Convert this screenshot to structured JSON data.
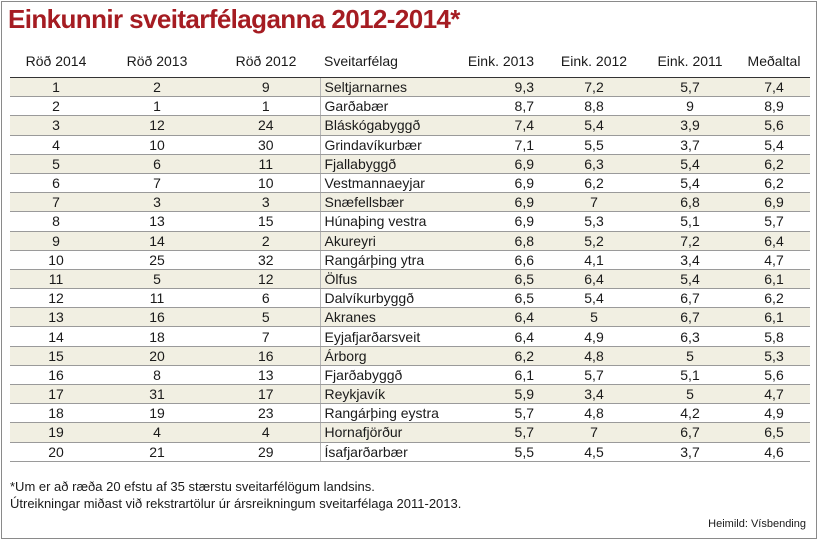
{
  "title": "Einkunnir sveitarfélaganna 2012-2014*",
  "columns": [
    "Röð 2014",
    "Röð 2013",
    "Röð 2012",
    "Sveitarfélag",
    "Eink. 2013",
    "Eink. 2012",
    "Eink. 2011",
    "Meðaltal"
  ],
  "rows": [
    [
      "1",
      "2",
      "9",
      "Seltjarnarnes",
      "9,3",
      "7,2",
      "5,7",
      "7,4"
    ],
    [
      "2",
      "1",
      "1",
      "Garðabær",
      "8,7",
      "8,8",
      "9",
      "8,9"
    ],
    [
      "3",
      "12",
      "24",
      "Bláskógabyggð",
      "7,4",
      "5,4",
      "3,9",
      "5,6"
    ],
    [
      "4",
      "10",
      "30",
      "Grindavíkurbær",
      "7,1",
      "5,5",
      "3,7",
      "5,4"
    ],
    [
      "5",
      "6",
      "11",
      "Fjallabyggð",
      "6,9",
      "6,3",
      "5,4",
      "6,2"
    ],
    [
      "6",
      "7",
      "10",
      "Vestmannaeyjar",
      "6,9",
      "6,2",
      "5,4",
      "6,2"
    ],
    [
      "7",
      "3",
      "3",
      "Snæfellsbær",
      "6,9",
      "7",
      "6,8",
      "6,9"
    ],
    [
      "8",
      "13",
      "15",
      "Húnaþing vestra",
      "6,9",
      "5,3",
      "5,1",
      "5,7"
    ],
    [
      "9",
      "14",
      "2",
      "Akureyri",
      "6,8",
      "5,2",
      "7,2",
      "6,4"
    ],
    [
      "10",
      "25",
      "32",
      "Rangárþing ytra",
      "6,6",
      "4,1",
      "3,4",
      "4,7"
    ],
    [
      "11",
      "5",
      "12",
      "Ölfus",
      "6,5",
      "6,4",
      "5,4",
      "6,1"
    ],
    [
      "12",
      "11",
      "6",
      "Dalvíkurbyggð",
      "6,5",
      "5,4",
      "6,7",
      "6,2"
    ],
    [
      "13",
      "16",
      "5",
      "Akranes",
      "6,4",
      "5",
      "6,7",
      "6,1"
    ],
    [
      "14",
      "18",
      "7",
      "Eyjafjarðarsveit",
      "6,4",
      "4,9",
      "6,3",
      "5,8"
    ],
    [
      "15",
      "20",
      "16",
      "Árborg",
      "6,2",
      "4,8",
      "5",
      "5,3"
    ],
    [
      "16",
      "8",
      "13",
      "Fjarðabyggð",
      "6,1",
      "5,7",
      "5,1",
      "5,6"
    ],
    [
      "17",
      "31",
      "17",
      "Reykjavík",
      "5,9",
      "3,4",
      "5",
      "4,7"
    ],
    [
      "18",
      "19",
      "23",
      "Rangárþing eystra",
      "5,7",
      "4,8",
      "4,2",
      "4,9"
    ],
    [
      "19",
      "4",
      "4",
      "Hornafjörður",
      "5,7",
      "7",
      "6,7",
      "6,5"
    ],
    [
      "20",
      "21",
      "29",
      "Ísafjarðarbær",
      "5,5",
      "4,5",
      "3,7",
      "4,6"
    ]
  ],
  "footnotes": [
    "*Um er að ræða 20 efstu af 35 stærstu sveitarfélögum landsins.",
    "Útreikningar miðast við rekstrartölur úr ársreikningum sveitarfélaga 2011-2013."
  ],
  "source": "Heimild: Vísbending",
  "colors": {
    "title": "#a51c22",
    "stripe": "#f1efe2"
  }
}
